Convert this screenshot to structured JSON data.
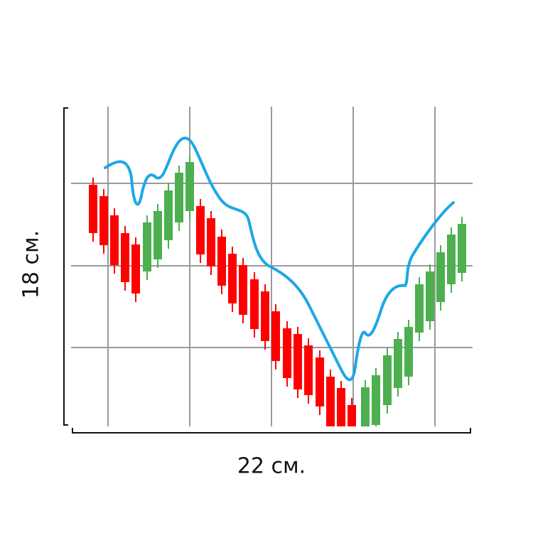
{
  "labels": {
    "height": "18 см.",
    "width": "22 см."
  }
}
